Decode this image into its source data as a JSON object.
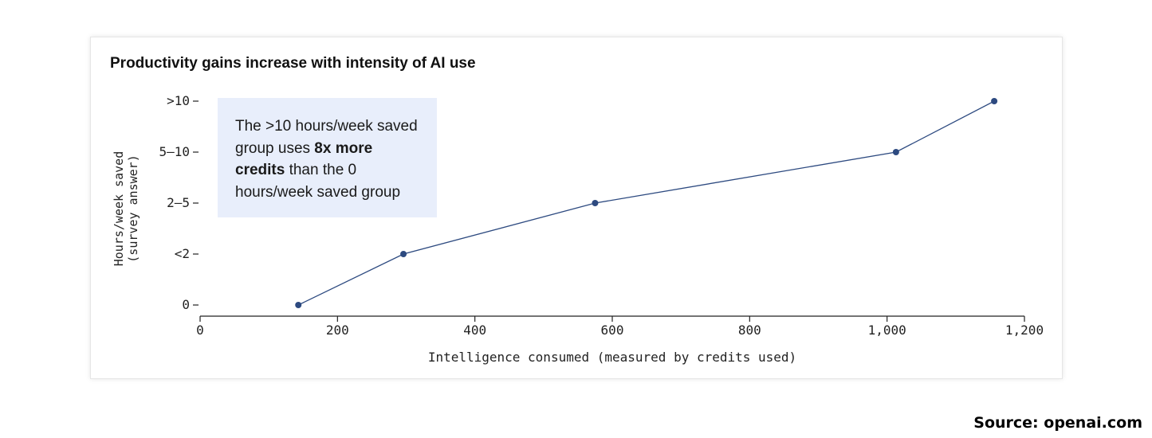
{
  "chart_data": {
    "type": "line",
    "title": "Productivity gains increase with intensity of AI use",
    "xlabel": "Intelligence consumed (measured by credits used)",
    "ylabel_lines": [
      "Hours/week saved",
      "(survey answer)"
    ],
    "xlim": [
      0,
      1200
    ],
    "x_ticks": [
      0,
      200,
      400,
      600,
      800,
      1000,
      1200
    ],
    "x_tick_labels": [
      "0",
      "200",
      "400",
      "600",
      "800",
      "1,000",
      "1,200"
    ],
    "y_categories": [
      "0",
      "<2",
      "2–5",
      "5–10",
      ">10"
    ],
    "series": [
      {
        "x": [
          143,
          296,
          575,
          1013,
          1156
        ],
        "y": [
          "0",
          "<2",
          "2–5",
          "5–10",
          ">10"
        ],
        "color": "#2d4a80"
      }
    ],
    "grid": false,
    "legend": "none"
  },
  "annotation": {
    "part1": "The >10 hours/week saved group uses ",
    "bold": "8x more credits",
    "part2": " than the 0 hours/week saved group"
  },
  "source": "Source: openai.com",
  "colors": {
    "line": "#2d4a80",
    "annotation_bg": "#e8eefb",
    "axis": "#222222"
  }
}
